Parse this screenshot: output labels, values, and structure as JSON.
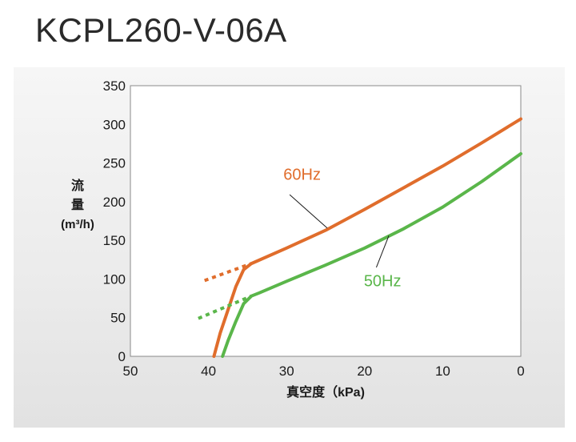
{
  "header": {
    "title": "KCPL260-V-06A"
  },
  "chart_data": {
    "type": "line",
    "title": "KCPL260-V-06A",
    "xlabel": "真空度（kPa)",
    "ylabel": "流\n量\n(m³/h)",
    "xlim": [
      50,
      0
    ],
    "ylim": [
      0,
      350
    ],
    "x_ticks": [
      "50",
      "40",
      "30",
      "20",
      "10",
      "0"
    ],
    "y_ticks": [
      "0",
      "50",
      "100",
      "150",
      "200",
      "250",
      "300",
      "350"
    ],
    "grid": true,
    "series": [
      {
        "name": "60Hz",
        "color": "#e06d2c",
        "x": [
          39.3,
          38.5,
          37.5,
          36.5,
          35.5,
          34.5,
          30,
          25,
          20,
          15,
          10,
          5,
          0
        ],
        "y": [
          0,
          30,
          60,
          90,
          112,
          120,
          140,
          163,
          190,
          218,
          246,
          276,
          307
        ],
        "extrapolated": {
          "x": [
            40.5,
            34.5
          ],
          "y": [
            98,
            120
          ]
        }
      },
      {
        "name": "50Hz",
        "color": "#5ab64a",
        "x": [
          38.2,
          37.5,
          36.5,
          35.5,
          34.5,
          33.5,
          30,
          25,
          20,
          15,
          10,
          5,
          0
        ],
        "y": [
          0,
          20,
          45,
          68,
          78,
          82,
          97,
          118,
          140,
          165,
          193,
          226,
          262
        ],
        "extrapolated": {
          "x": [
            41.3,
            34.5
          ],
          "y": [
            49,
            78
          ]
        }
      }
    ]
  }
}
